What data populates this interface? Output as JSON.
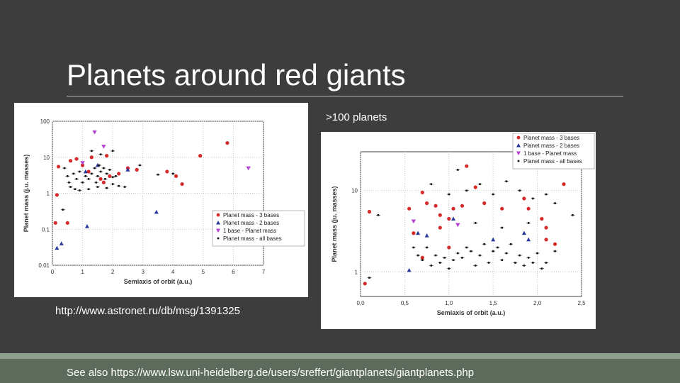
{
  "slide": {
    "title": "Planets around red giants",
    "count_label": ">100 planets",
    "source_link": "http://www.astronet.ru/db/msg/1391325",
    "footer": "See also https://www.lsw.uni-heidelberg.de/users/sreffert/giantplanets/giantplanets.php"
  },
  "chart_data": [
    {
      "type": "scatter",
      "xlabel": "Semiaxis of orbit (a.u.)",
      "ylabel": "Planet mass (j.u. masses)",
      "xlim": [
        0,
        7
      ],
      "ylim": [
        0.01,
        100
      ],
      "yscale": "log",
      "x_ticks": [
        0,
        1,
        2,
        3,
        4,
        5,
        6,
        7
      ],
      "y_ticks": [
        0.01,
        0.1,
        1,
        10,
        100
      ],
      "y_tick_labels": [
        "0.01",
        "0.1",
        "1",
        "10",
        "100"
      ],
      "grid": true,
      "legend_position": "bottom-right",
      "series": [
        {
          "name": "Planet mass - 3 bases",
          "marker": "circle",
          "color": "#d42a2a",
          "points": [
            [
              0.15,
              0.9
            ],
            [
              0.2,
              5.5
            ],
            [
              0.5,
              0.15
            ],
            [
              0.6,
              8
            ],
            [
              0.8,
              9
            ],
            [
              1.0,
              6
            ],
            [
              1.2,
              4
            ],
            [
              1.3,
              10
            ],
            [
              1.6,
              2.5
            ],
            [
              1.8,
              11
            ],
            [
              1.9,
              3
            ],
            [
              2.2,
              3.5
            ],
            [
              2.5,
              5
            ],
            [
              2.8,
              4.5
            ],
            [
              3.8,
              4
            ],
            [
              4.1,
              3
            ],
            [
              4.3,
              1.8
            ],
            [
              4.9,
              11
            ],
            [
              5.8,
              25
            ],
            [
              0.1,
              0.15
            ],
            [
              1.7,
              2
            ]
          ]
        },
        {
          "name": "Planet mass - 2 bases",
          "marker": "triangle-up",
          "color": "#2a3a9c",
          "points": [
            [
              0.15,
              0.03
            ],
            [
              0.3,
              0.04
            ],
            [
              1.15,
              0.12
            ],
            [
              1.5,
              6
            ],
            [
              3.45,
              0.3
            ],
            [
              2.5,
              4.5
            ],
            [
              1.1,
              4
            ]
          ]
        },
        {
          "name": "1 base - Planet mass",
          "marker": "triangle-down",
          "color": "#b43fd0",
          "points": [
            [
              1.7,
              20
            ],
            [
              1.4,
              50
            ],
            [
              6.5,
              5
            ],
            [
              1.0,
              7
            ]
          ]
        },
        {
          "name": "Planet mass - all bases",
          "marker": "square",
          "color": "#111111",
          "points": [
            [
              0.4,
              5
            ],
            [
              0.5,
              3
            ],
            [
              0.55,
              2
            ],
            [
              0.7,
              3.5
            ],
            [
              0.8,
              2.5
            ],
            [
              0.9,
              4
            ],
            [
              1.0,
              2
            ],
            [
              1.1,
              3
            ],
            [
              1.2,
              2.5
            ],
            [
              1.3,
              3.5
            ],
            [
              1.4,
              5
            ],
            [
              1.45,
              2
            ],
            [
              1.5,
              3
            ],
            [
              1.55,
              6
            ],
            [
              1.6,
              4
            ],
            [
              1.7,
              5
            ],
            [
              1.75,
              2.5
            ],
            [
              1.8,
              3.5
            ],
            [
              1.9,
              4.5
            ],
            [
              2.0,
              2.8
            ],
            [
              2.1,
              3
            ],
            [
              2.2,
              1.6
            ],
            [
              2.4,
              1.5
            ],
            [
              0.35,
              0.35
            ],
            [
              0.9,
              1.2
            ],
            [
              1.2,
              1.3
            ],
            [
              1.5,
              1.5
            ],
            [
              1.8,
              1.4
            ],
            [
              2.0,
              1.8
            ],
            [
              2.9,
              6
            ],
            [
              3.5,
              3.3
            ],
            [
              4.0,
              3.5
            ],
            [
              1.3,
              15
            ],
            [
              2.0,
              15
            ],
            [
              1.6,
              12
            ],
            [
              0.6,
              1.5
            ],
            [
              0.75,
              1.3
            ]
          ]
        }
      ]
    },
    {
      "type": "scatter",
      "xlabel": "Semiaxis of orbit (a.u.)",
      "ylabel": "Planet mass (ju. masses)",
      "xlim": [
        0,
        2.5
      ],
      "ylim": [
        0.5,
        30
      ],
      "yscale": "log",
      "x_ticks": [
        0,
        0.5,
        1,
        1.5,
        2,
        2.5
      ],
      "x_tick_labels": [
        "0,0",
        "0,5",
        "1,0",
        "1,5",
        "2,0",
        "2,5"
      ],
      "y_ticks": [
        1,
        10
      ],
      "y_tick_labels": [
        "1",
        "10"
      ],
      "grid": true,
      "legend_position": "top-right",
      "series": [
        {
          "name": "Planet mass - 3 bases",
          "marker": "circle",
          "color": "#d42a2a",
          "points": [
            [
              0.05,
              0.72
            ],
            [
              0.1,
              5.5
            ],
            [
              0.55,
              6
            ],
            [
              0.7,
              9.5
            ],
            [
              0.75,
              7
            ],
            [
              0.85,
              6.5
            ],
            [
              0.9,
              5
            ],
            [
              1.0,
              4.5
            ],
            [
              1.05,
              6
            ],
            [
              1.15,
              6.5
            ],
            [
              1.3,
              11
            ],
            [
              1.4,
              7
            ],
            [
              1.6,
              6
            ],
            [
              1.85,
              8
            ],
            [
              1.9,
              6
            ],
            [
              2.05,
              4.5
            ],
            [
              2.1,
              2.5
            ],
            [
              2.2,
              2.2
            ],
            [
              2.3,
              12
            ],
            [
              0.7,
              1.5
            ],
            [
              0.9,
              3.5
            ],
            [
              1.2,
              20
            ],
            [
              0.6,
              3
            ],
            [
              1.0,
              2
            ],
            [
              2.1,
              3.5
            ]
          ]
        },
        {
          "name": "Planet mass - 2 bases",
          "marker": "triangle-up",
          "color": "#2a3a9c",
          "points": [
            [
              0.55,
              1.05
            ],
            [
              0.65,
              3
            ],
            [
              1.05,
              4.5
            ],
            [
              1.5,
              2.5
            ],
            [
              1.9,
              2.5
            ],
            [
              0.75,
              2.8
            ],
            [
              1.85,
              3
            ]
          ]
        },
        {
          "name": "1 base - Planet mass",
          "marker": "triangle-down",
          "color": "#b43fd0",
          "points": [
            [
              1.1,
              3.8
            ],
            [
              0.6,
              4.2
            ]
          ]
        },
        {
          "name": "Planet mass - all bases",
          "marker": "square",
          "color": "#111111",
          "points": [
            [
              0.1,
              0.85
            ],
            [
              0.2,
              5
            ],
            [
              0.6,
              2
            ],
            [
              0.65,
              1.6
            ],
            [
              0.7,
              1.4
            ],
            [
              0.75,
              2
            ],
            [
              0.8,
              1.2
            ],
            [
              0.85,
              1.6
            ],
            [
              0.9,
              1.3
            ],
            [
              0.95,
              1.5
            ],
            [
              1.0,
              1.1
            ],
            [
              1.05,
              1.4
            ],
            [
              1.1,
              1.7
            ],
            [
              1.15,
              1.5
            ],
            [
              1.2,
              2
            ],
            [
              1.25,
              1.8
            ],
            [
              1.3,
              1.2
            ],
            [
              1.35,
              1.6
            ],
            [
              1.4,
              2.2
            ],
            [
              1.45,
              1.3
            ],
            [
              1.5,
              1.8
            ],
            [
              1.55,
              2
            ],
            [
              1.6,
              1.4
            ],
            [
              1.65,
              1.7
            ],
            [
              1.7,
              2.2
            ],
            [
              1.75,
              1.3
            ],
            [
              1.8,
              1.6
            ],
            [
              1.85,
              1.2
            ],
            [
              1.9,
              1.5
            ],
            [
              1.95,
              1.3
            ],
            [
              2.0,
              1.7
            ],
            [
              2.05,
              1.1
            ],
            [
              2.1,
              1.3
            ],
            [
              2.2,
              1.8
            ],
            [
              1.2,
              10
            ],
            [
              1.35,
              12
            ],
            [
              1.5,
              9
            ],
            [
              1.65,
              13
            ],
            [
              1.8,
              10
            ],
            [
              1.95,
              8
            ],
            [
              2.1,
              9
            ],
            [
              2.2,
              7
            ],
            [
              1.0,
              9
            ],
            [
              0.8,
              12
            ],
            [
              2.4,
              5
            ],
            [
              1.1,
              18
            ],
            [
              1.3,
              4
            ],
            [
              1.6,
              3.5
            ],
            [
              1.9,
              4
            ]
          ]
        }
      ]
    }
  ]
}
